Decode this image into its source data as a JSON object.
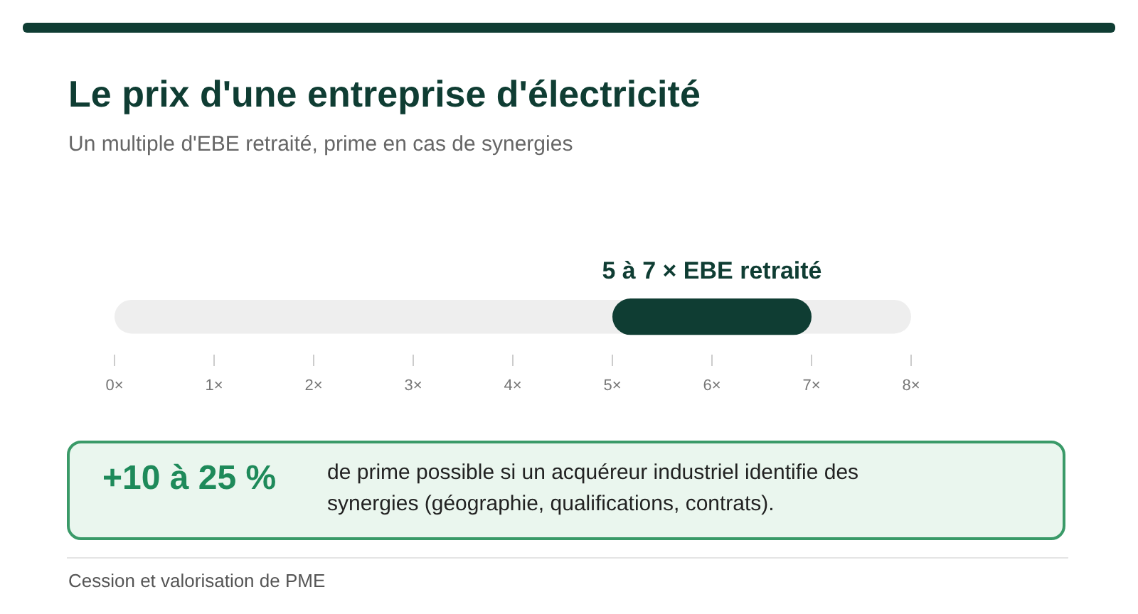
{
  "chart_data": {
    "type": "bar",
    "orientation": "horizontal",
    "title": "Le prix d'une entreprise d'électricité",
    "subtitle": "Un multiple d'EBE retraité, prime en cas de synergies",
    "categories": [
      null
    ],
    "values": [
      2
    ],
    "base": [
      5
    ],
    "color": "#0f3d33",
    "xlim": [
      0,
      8
    ],
    "xticks": [
      {
        "value": 0,
        "label": "0×"
      },
      {
        "value": 1,
        "label": "1×"
      },
      {
        "value": 2,
        "label": "2×"
      },
      {
        "value": 3,
        "label": "3×"
      },
      {
        "value": 4,
        "label": "4×"
      },
      {
        "value": 5,
        "label": "5×"
      },
      {
        "value": 6,
        "label": "6×"
      },
      {
        "value": 7,
        "label": "7×"
      },
      {
        "value": 8,
        "label": "8×"
      }
    ],
    "bands": [
      {
        "axis": "x",
        "from": 0,
        "to": 8,
        "color": "#eeeeee"
      }
    ],
    "grid": false,
    "annotations": [
      "5 à 7 × EBE retraité",
      "+10 à 25 %",
      "de prime possible si un acquéreur industriel identifie des synergies (géographie, qualifications, contrats).",
      "Cession et valorisation de PME"
    ]
  }
}
